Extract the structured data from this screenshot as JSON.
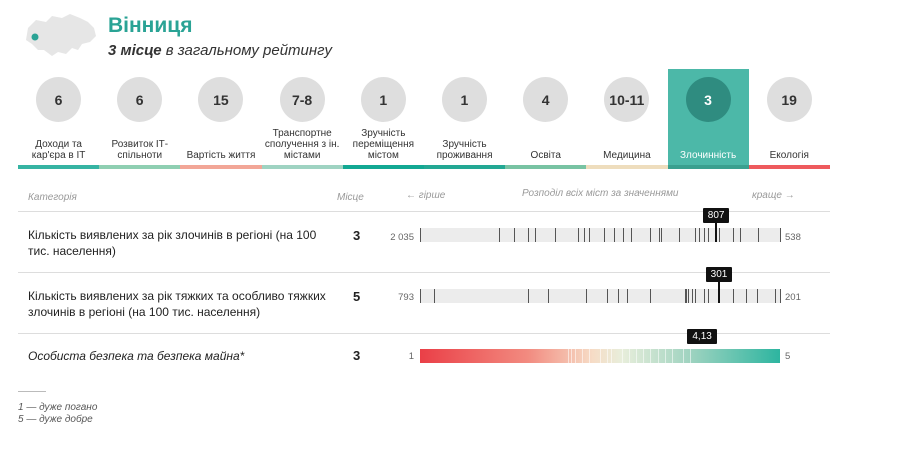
{
  "header": {
    "city": "Вінниця",
    "rank_number": "3 місце",
    "rank_rest": " в загальному рейтингу",
    "colors": {
      "accent": "#2aa395",
      "map_fill": "#e6e6e6",
      "marker": "#2aa395"
    },
    "icon": "ukraine-map-icon"
  },
  "tabs": [
    {
      "rank": "6",
      "label": "Доходи та кар'єра в ІТ",
      "bar_color": "#36b4a3"
    },
    {
      "rank": "6",
      "label": "Розвиток ІТ-спільноти",
      "bar_color": "#8fcfb2"
    },
    {
      "rank": "15",
      "label": "Вартість життя",
      "bar_color": "#f2a697"
    },
    {
      "rank": "7-8",
      "label": "Транспортне сполучення з ін. містами",
      "bar_color": "#9fd3c2"
    },
    {
      "rank": "1",
      "label": "Зручність переміщення містом",
      "bar_color": "#12a893"
    },
    {
      "rank": "1",
      "label": "Зручність проживання",
      "bar_color": "#23a894"
    },
    {
      "rank": "4",
      "label": "Освіта",
      "bar_color": "#78c3a3"
    },
    {
      "rank": "10-11",
      "label": "Медицина",
      "bar_color": "#eeddbd"
    },
    {
      "rank": "3",
      "label": "Злочинність",
      "bar_color": "#3aa08f",
      "active": true
    },
    {
      "rank": "19",
      "label": "Екологія",
      "bar_color": "#ee5a5d"
    }
  ],
  "table": {
    "col_category": "Категорія",
    "col_place": "Місце",
    "col_worse": "← гірше",
    "col_dist": "Розподіл всіх міст за значеннями",
    "col_better": "краще →",
    "rows": [
      {
        "name": "Кількість виявлених за рік злочинів в регіоні (на 100 тис. населення)",
        "place": "3",
        "left_value": "2 035",
        "right_value": "538",
        "highlight": "807",
        "highlight_pos": 0.823,
        "dist_ticks": [
          0.0,
          0.22,
          0.26,
          0.3,
          0.32,
          0.375,
          0.44,
          0.455,
          0.47,
          0.51,
          0.54,
          0.565,
          0.585,
          0.64,
          0.665,
          0.67,
          0.72,
          0.765,
          0.775,
          0.79,
          0.8,
          0.83,
          0.87,
          0.89,
          0.94,
          1.0
        ]
      },
      {
        "name": "Кількість виявлених за рік тяжких та особливо тяжких злочинів в регіоні (на 100 тис. населення)",
        "place": "5",
        "left_value": "793",
        "right_value": "201",
        "highlight": "301",
        "highlight_pos": 0.831,
        "dist_ticks": [
          0.0,
          0.04,
          0.3,
          0.355,
          0.46,
          0.52,
          0.55,
          0.575,
          0.64,
          0.735,
          0.74,
          0.745,
          0.755,
          0.765,
          0.79,
          0.8,
          0.87,
          0.905,
          0.935,
          0.985,
          1.0
        ]
      },
      {
        "name": "Особиста безпека та безпека майна*",
        "place": "3",
        "left_value": "1",
        "right_value": "5",
        "highlight": "4,13",
        "highlight_pos": 0.783,
        "dist_ticks": [
          0.41,
          0.42,
          0.43,
          0.45,
          0.47,
          0.5,
          0.52,
          0.53,
          0.56,
          0.58,
          0.6,
          0.62,
          0.64,
          0.66,
          0.68,
          0.7,
          0.73,
          0.75
        ]
      }
    ]
  },
  "legend": {
    "line1": "1 — дуже погано",
    "line2": "5 — дуже добре"
  }
}
